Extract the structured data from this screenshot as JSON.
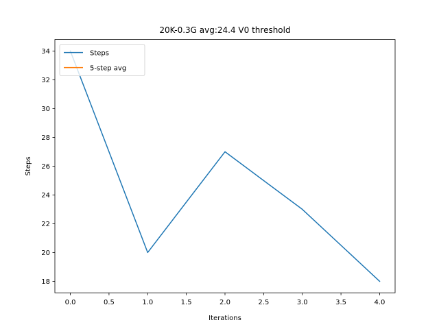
{
  "chart_data": {
    "type": "line",
    "title": "20K-0.3G avg:24.4 V0 threshold",
    "xlabel": "Iterations",
    "ylabel": "Steps",
    "xlim": [
      -0.2,
      4.2
    ],
    "ylim": [
      17.2,
      34.8
    ],
    "xticks": [
      "0.0",
      "0.5",
      "1.0",
      "1.5",
      "2.0",
      "2.5",
      "3.0",
      "3.5",
      "4.0"
    ],
    "yticks": [
      "18",
      "20",
      "22",
      "24",
      "26",
      "28",
      "30",
      "32",
      "34"
    ],
    "grid": false,
    "legend_position": "upper-left",
    "series": [
      {
        "name": "Steps",
        "color": "#1f77b4",
        "x": [
          0,
          1,
          2,
          3,
          4
        ],
        "y": [
          34,
          20,
          27,
          23,
          18
        ]
      },
      {
        "name": "5-step avg",
        "color": "#ff7f0e",
        "x": [],
        "y": []
      }
    ]
  }
}
